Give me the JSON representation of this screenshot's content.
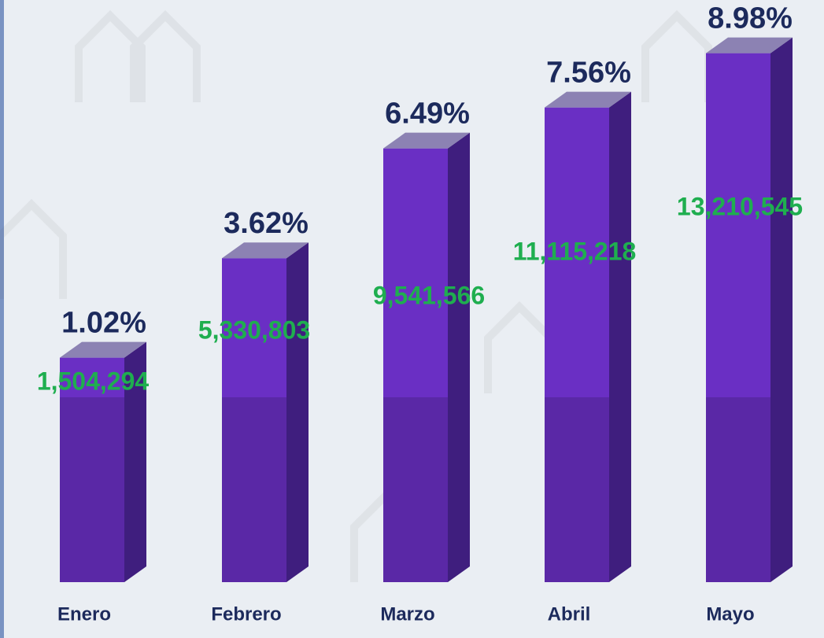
{
  "chart_data": {
    "type": "bar3d",
    "categories": [
      "Enero",
      "Febrero",
      "Marzo",
      "Abril",
      "Mayo"
    ],
    "values": [
      1.02,
      3.62,
      6.49,
      7.56,
      8.98
    ],
    "value_labels": [
      "1.02%",
      "3.62%",
      "6.49%",
      "7.56%",
      "8.98%"
    ],
    "amounts": [
      1504294,
      5330803,
      9541566,
      11115218,
      13210545
    ],
    "amount_labels": [
      "1,504,294",
      "5,330,803",
      "9,541,566",
      "11,115,218",
      "13,210,545"
    ],
    "color": "#6a2fc4",
    "ylim": [
      -4.85,
      10
    ]
  }
}
